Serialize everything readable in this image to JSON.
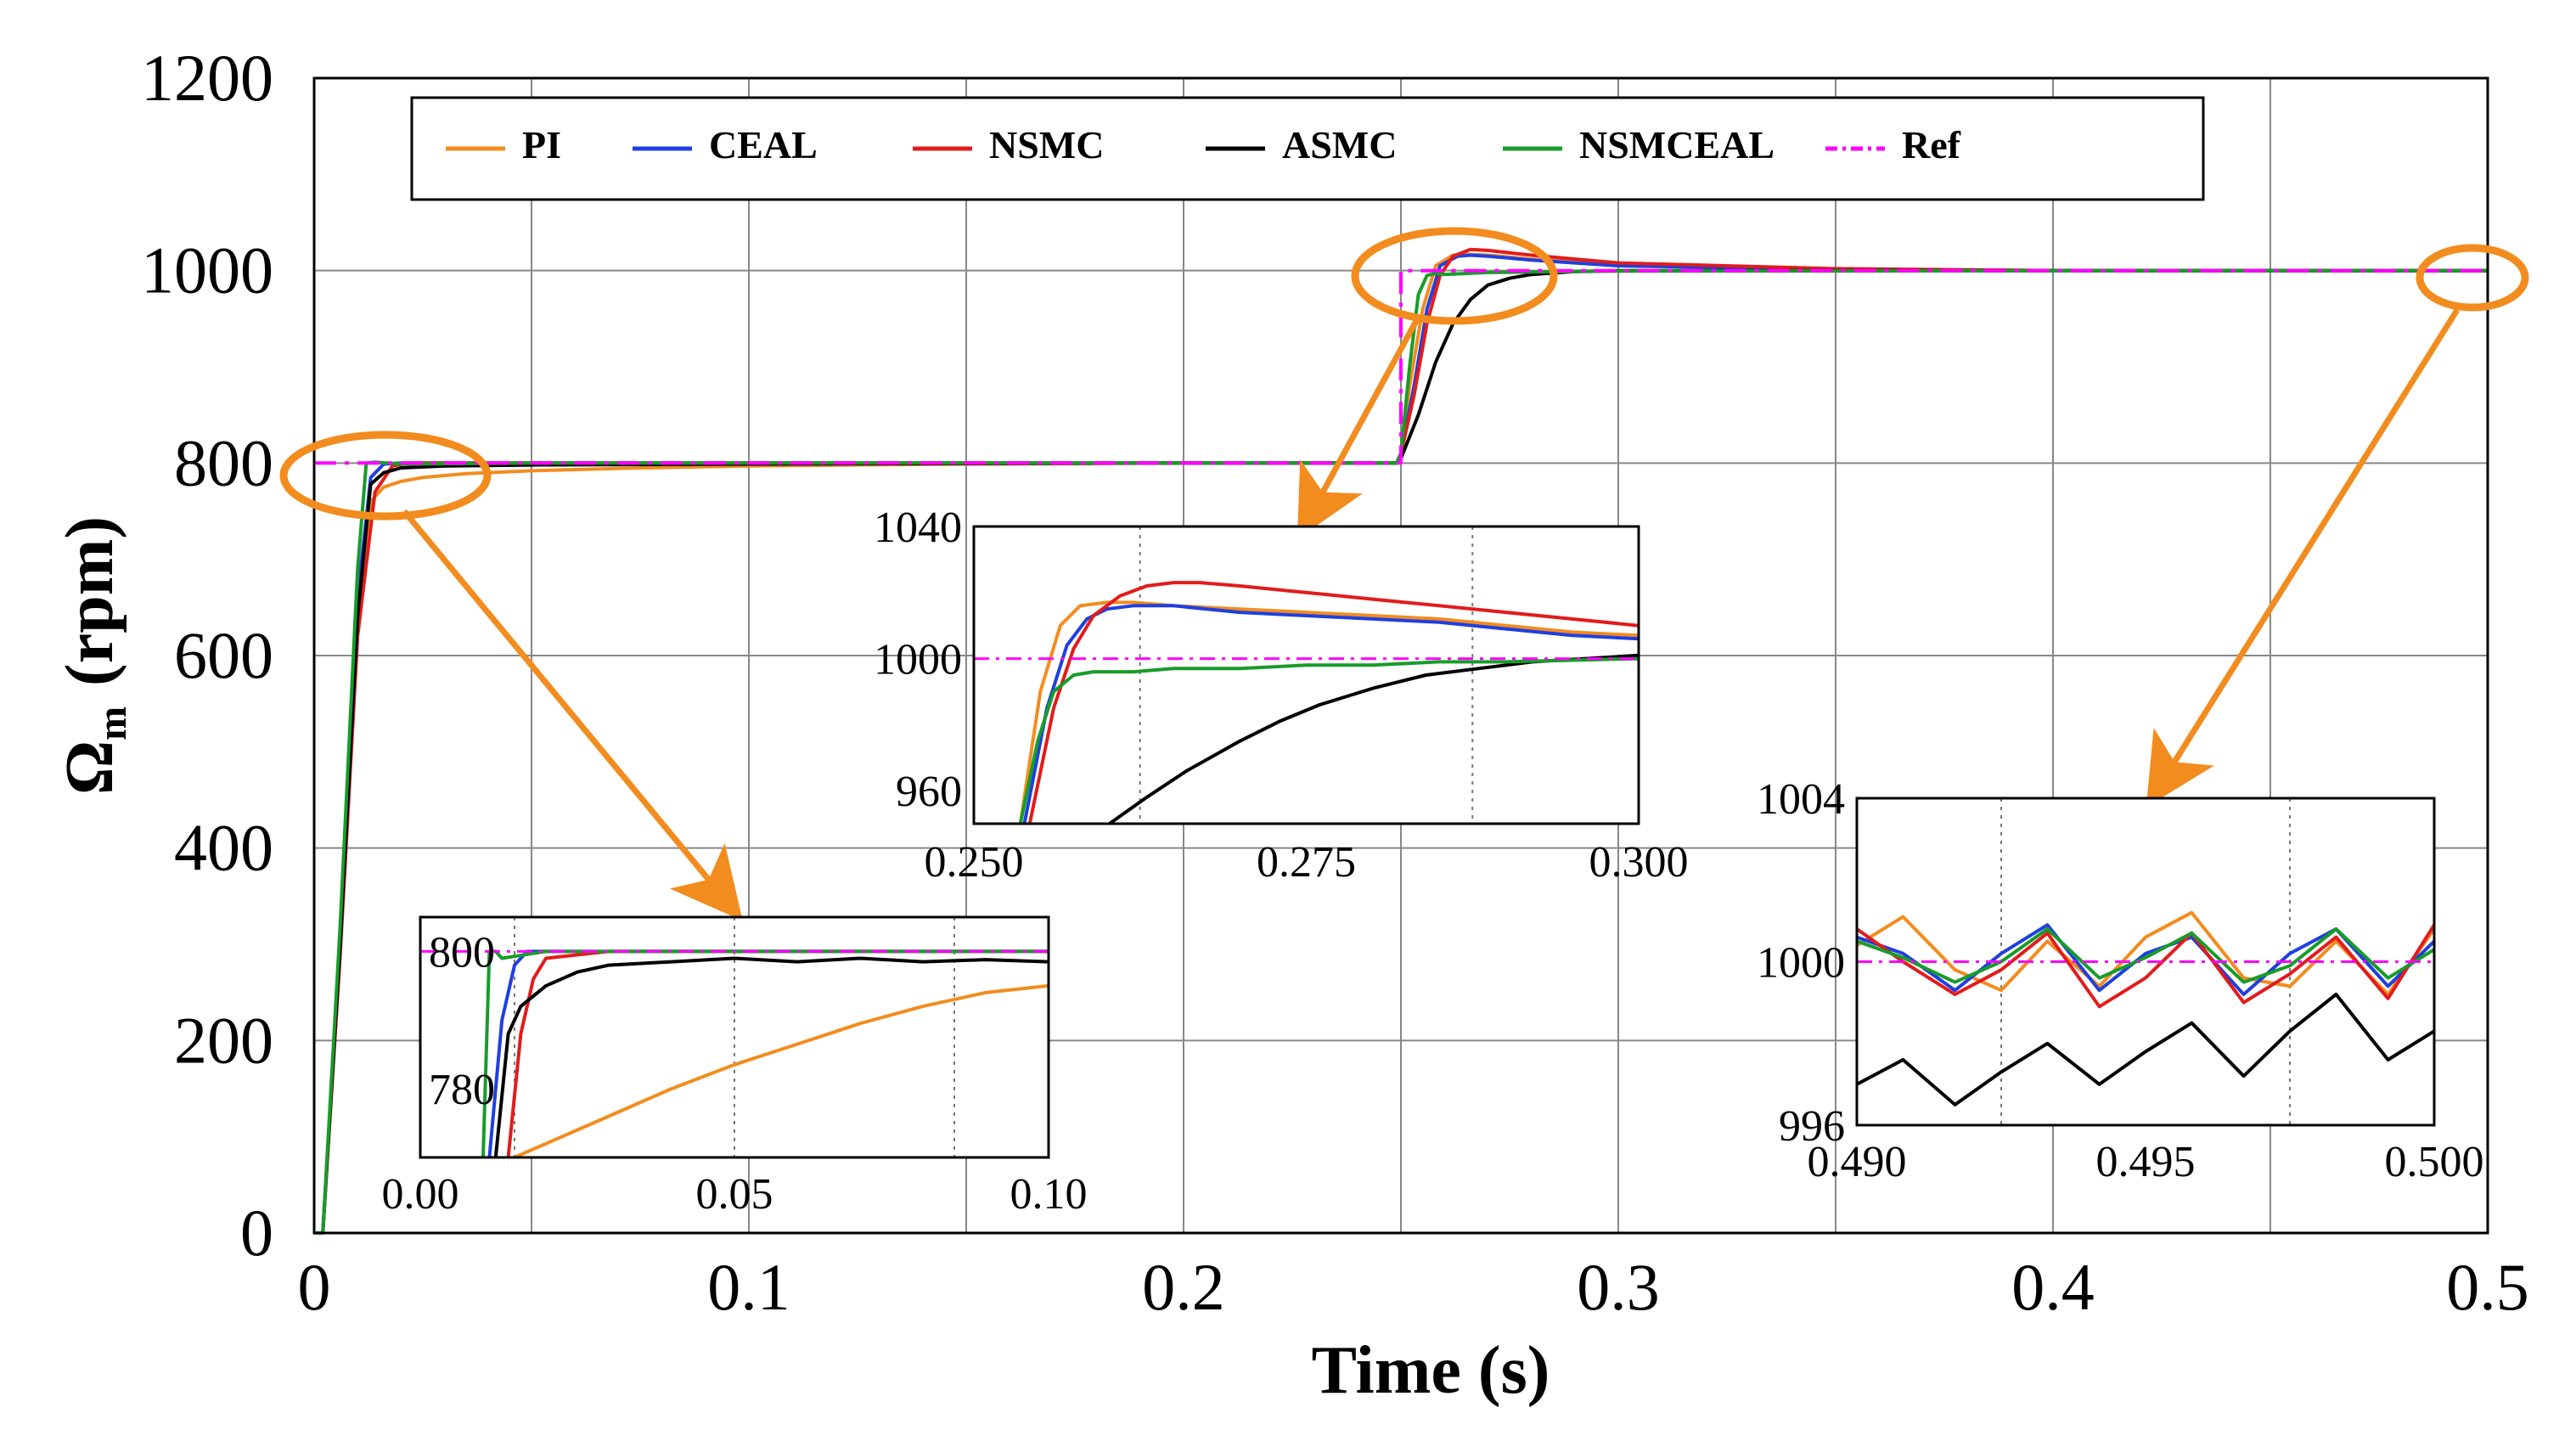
{
  "chart_data": [
    {
      "id": "main",
      "type": "line",
      "title": "",
      "xlabel": "Time (s)",
      "ylabel_main": "Ω",
      "ylabel_sub": "m",
      "ylabel_unit": "(rpm)",
      "xlim": [
        0,
        0.5
      ],
      "ylim": [
        0,
        1200
      ],
      "xticks": [
        0,
        0.1,
        0.2,
        0.3,
        0.4,
        0.5
      ],
      "xtick_labels": [
        "0",
        "0.1",
        "0.2",
        "0.3",
        "0.4",
        "0.5"
      ],
      "yticks": [
        0,
        200,
        400,
        600,
        800,
        1000,
        1200
      ],
      "ytick_labels": [
        "0",
        "200",
        "400",
        "600",
        "800",
        "1000",
        "1200"
      ],
      "xgrid": [
        0,
        0.05,
        0.1,
        0.15,
        0.2,
        0.25,
        0.3,
        0.35,
        0.4,
        0.45,
        0.5
      ],
      "ygrid": [
        0,
        200,
        400,
        600,
        800,
        1000,
        1200
      ],
      "grid": true,
      "legend_position": "top",
      "series": [
        {
          "name": "PI",
          "color": "#f28c1e",
          "dash": "solid",
          "x": [
            0,
            0.002,
            0.006,
            0.01,
            0.013,
            0.016,
            0.02,
            0.025,
            0.035,
            0.05,
            0.075,
            0.1,
            0.15,
            0.2,
            0.249,
            0.25,
            0.252,
            0.255,
            0.258,
            0.262,
            0.265,
            0.27,
            0.28,
            0.3,
            0.35,
            0.4,
            0.5
          ],
          "y": [
            0,
            0,
            300,
            650,
            760,
            775,
            781,
            785,
            789,
            792,
            795,
            797,
            799,
            800,
            800,
            810,
            880,
            960,
            1005,
            1016,
            1017,
            1016,
            1012,
            1006,
            1001,
            1000,
            1000
          ]
        },
        {
          "name": "CEAL",
          "color": "#1f3fe0",
          "dash": "solid",
          "x": [
            0,
            0.002,
            0.006,
            0.01,
            0.013,
            0.016,
            0.02,
            0.05,
            0.1,
            0.2,
            0.249,
            0.25,
            0.253,
            0.256,
            0.259,
            0.263,
            0.266,
            0.27,
            0.28,
            0.3,
            0.35,
            0.4,
            0.5
          ],
          "y": [
            0,
            0,
            310,
            660,
            785,
            799,
            800,
            800,
            800,
            800,
            800,
            810,
            880,
            960,
            1005,
            1015,
            1016,
            1015,
            1011,
            1005,
            1001,
            1000,
            1000
          ]
        },
        {
          "name": "NSMC",
          "color": "#e31b1b",
          "dash": "solid",
          "x": [
            0,
            0.002,
            0.006,
            0.01,
            0.014,
            0.018,
            0.022,
            0.05,
            0.1,
            0.2,
            0.249,
            0.25,
            0.253,
            0.256,
            0.259,
            0.262,
            0.266,
            0.27,
            0.28,
            0.3,
            0.35,
            0.4,
            0.5
          ],
          "y": [
            0,
            0,
            290,
            620,
            770,
            797,
            800,
            800,
            800,
            800,
            800,
            810,
            870,
            945,
            995,
            1015,
            1022,
            1021,
            1016,
            1008,
            1002,
            1000,
            1000
          ]
        },
        {
          "name": "ASMC",
          "color": "#000000",
          "dash": "solid",
          "x": [
            0,
            0.002,
            0.006,
            0.01,
            0.013,
            0.016,
            0.02,
            0.03,
            0.05,
            0.1,
            0.2,
            0.249,
            0.25,
            0.254,
            0.258,
            0.262,
            0.266,
            0.27,
            0.275,
            0.28,
            0.29,
            0.3,
            0.35,
            0.4,
            0.5
          ],
          "y": [
            0,
            0,
            300,
            640,
            778,
            790,
            795,
            797,
            798,
            799,
            800,
            800,
            805,
            850,
            905,
            945,
            970,
            985,
            992,
            996,
            999,
            1000,
            1000,
            1000,
            1000
          ]
        },
        {
          "name": "NSMCEAL",
          "color": "#179c2a",
          "dash": "solid",
          "x": [
            0,
            0.002,
            0.006,
            0.01,
            0.012,
            0.014,
            0.02,
            0.05,
            0.1,
            0.2,
            0.249,
            0.25,
            0.252,
            0.254,
            0.256,
            0.258,
            0.26,
            0.27,
            0.3,
            0.5
          ],
          "y": [
            0,
            0,
            320,
            690,
            800,
            801,
            799,
            800,
            800,
            800,
            800,
            810,
            900,
            975,
            995,
            997,
            996,
            998,
            999.5,
            1000
          ]
        },
        {
          "name": "Ref",
          "color": "#ff00ff",
          "dash": "dashdot",
          "x": [
            0,
            0.25,
            0.25,
            0.5
          ],
          "y": [
            800,
            800,
            1000,
            1000
          ]
        }
      ]
    },
    {
      "id": "inset1",
      "type": "line",
      "xlim": [
        0,
        0.1
      ],
      "ylim": [
        770,
        805
      ],
      "xticks": [
        0,
        0.05,
        0.1
      ],
      "xtick_labels": [
        "0.00",
        "0.05",
        "0.10"
      ],
      "yticks": [
        780,
        800
      ],
      "ytick_labels": [
        "780",
        "800"
      ],
      "xgrid": [
        0.015,
        0.05,
        0.085
      ],
      "series": [
        {
          "name": "PI",
          "color": "#f28c1e",
          "x": [
            0.015,
            0.02,
            0.03,
            0.04,
            0.05,
            0.06,
            0.07,
            0.08,
            0.09,
            0.1
          ],
          "y": [
            770,
            772,
            776,
            780,
            783.5,
            786.5,
            789.5,
            792,
            794,
            795
          ]
        },
        {
          "name": "CEAL",
          "color": "#1f3fe0",
          "x": [
            0.011,
            0.013,
            0.015,
            0.017,
            0.03,
            0.05,
            0.07,
            0.1
          ],
          "y": [
            770,
            790,
            798,
            800,
            800,
            800,
            800,
            800
          ]
        },
        {
          "name": "NSMC",
          "color": "#e31b1b",
          "x": [
            0.014,
            0.016,
            0.018,
            0.02,
            0.03,
            0.05,
            0.07,
            0.1
          ],
          "y": [
            770,
            788,
            796,
            799,
            800,
            800,
            800,
            800
          ]
        },
        {
          "name": "ASMC",
          "color": "#000000",
          "x": [
            0.012,
            0.014,
            0.016,
            0.02,
            0.025,
            0.03,
            0.04,
            0.05,
            0.06,
            0.07,
            0.08,
            0.09,
            0.1
          ],
          "y": [
            770,
            788,
            792,
            795,
            797,
            798,
            798.5,
            799,
            798.5,
            799,
            798.5,
            798.8,
            798.5
          ]
        },
        {
          "name": "NSMCEAL",
          "color": "#179c2a",
          "x": [
            0.01,
            0.011,
            0.012,
            0.013,
            0.02,
            0.03,
            0.05,
            0.07,
            0.1
          ],
          "y": [
            770,
            800,
            800,
            799,
            800,
            800,
            800,
            800,
            800
          ]
        },
        {
          "name": "Ref",
          "color": "#ff00ff",
          "x": [
            0,
            0.1
          ],
          "y": [
            800,
            800
          ]
        }
      ]
    },
    {
      "id": "inset2",
      "type": "line",
      "xlim": [
        0.25,
        0.3
      ],
      "ylim": [
        950,
        1040
      ],
      "xticks": [
        0.25,
        0.275,
        0.3
      ],
      "xtick_labels": [
        "0.250",
        "0.275",
        "0.300"
      ],
      "yticks": [
        960,
        1000,
        1040
      ],
      "ytick_labels": [
        "960",
        "1000",
        "1040"
      ],
      "xgrid": [
        0.2625,
        0.2875
      ],
      "series": [
        {
          "name": "PI",
          "color": "#f28c1e",
          "x": [
            0.2535,
            0.255,
            0.2565,
            0.258,
            0.26,
            0.262,
            0.265,
            0.27,
            0.275,
            0.28,
            0.285,
            0.29,
            0.295,
            0.3
          ],
          "y": [
            950,
            990,
            1010,
            1016,
            1017,
            1017,
            1016,
            1015,
            1014,
            1013,
            1012,
            1010,
            1008,
            1007
          ]
        },
        {
          "name": "CEAL",
          "color": "#1f3fe0",
          "x": [
            0.2538,
            0.2555,
            0.257,
            0.2585,
            0.26,
            0.262,
            0.265,
            0.27,
            0.275,
            0.28,
            0.285,
            0.29,
            0.295,
            0.3
          ],
          "y": [
            950,
            985,
            1004,
            1012,
            1015,
            1016,
            1016,
            1014,
            1013,
            1012,
            1011,
            1009,
            1007,
            1006
          ]
        },
        {
          "name": "NSMC",
          "color": "#e31b1b",
          "x": [
            0.2542,
            0.256,
            0.2575,
            0.259,
            0.261,
            0.263,
            0.265,
            0.267,
            0.27,
            0.275,
            0.28,
            0.285,
            0.29,
            0.295,
            0.3
          ],
          "y": [
            950,
            985,
            1003,
            1013,
            1019,
            1022,
            1023,
            1023,
            1022,
            1020,
            1018,
            1016,
            1014,
            1012,
            1010
          ]
        },
        {
          "name": "ASMC",
          "color": "#000000",
          "x": [
            0.2602,
            0.263,
            0.266,
            0.27,
            0.273,
            0.276,
            0.28,
            0.284,
            0.288,
            0.292,
            0.296,
            0.3
          ],
          "y": [
            950,
            958,
            966,
            975,
            981,
            986,
            991,
            995,
            997,
            999,
            1000,
            1001
          ]
        },
        {
          "name": "NSMCEAL",
          "color": "#179c2a",
          "x": [
            0.2535,
            0.2548,
            0.256,
            0.2575,
            0.259,
            0.262,
            0.265,
            0.27,
            0.275,
            0.28,
            0.285,
            0.29,
            0.295,
            0.3
          ],
          "y": [
            950,
            975,
            990,
            995,
            996,
            996,
            997,
            997,
            998,
            998,
            999,
            999,
            999.5,
            1000
          ]
        },
        {
          "name": "Ref",
          "color": "#ff00ff",
          "x": [
            0.25,
            0.3
          ],
          "y": [
            1000,
            1000
          ]
        }
      ]
    },
    {
      "id": "inset3",
      "type": "line",
      "xlim": [
        0.49,
        0.5
      ],
      "ylim": [
        996,
        1004
      ],
      "xticks": [
        0.49,
        0.495,
        0.5
      ],
      "xtick_labels": [
        "0.490",
        "0.495",
        "0.500"
      ],
      "yticks": [
        996,
        1000,
        1004
      ],
      "ytick_labels": [
        "996",
        "1000",
        "1004"
      ],
      "xgrid": [
        0.4925,
        0.4975
      ],
      "series": [
        {
          "name": "PI",
          "color": "#f28c1e",
          "x": [
            0.49,
            0.4908,
            0.4917,
            0.4925,
            0.4933,
            0.4942,
            0.495,
            0.4958,
            0.4967,
            0.4975,
            0.4983,
            0.4992,
            0.5
          ],
          "y": [
            1000.4,
            1001.1,
            999.8,
            999.3,
            1000.5,
            999.4,
            1000.6,
            1001.2,
            999.6,
            999.4,
            1000.5,
            999.2,
            1000.8
          ]
        },
        {
          "name": "CEAL",
          "color": "#1f3fe0",
          "x": [
            0.49,
            0.4908,
            0.4917,
            0.4925,
            0.4933,
            0.4942,
            0.495,
            0.4958,
            0.4967,
            0.4975,
            0.4983,
            0.4992,
            0.5
          ],
          "y": [
            1000.6,
            1000.2,
            999.3,
            1000.2,
            1000.9,
            999.3,
            1000.2,
            1000.6,
            999.2,
            1000.2,
            1000.8,
            999.4,
            1000.5
          ]
        },
        {
          "name": "NSMC",
          "color": "#e31b1b",
          "x": [
            0.49,
            0.4908,
            0.4917,
            0.4925,
            0.4933,
            0.4942,
            0.495,
            0.4958,
            0.4967,
            0.4975,
            0.4983,
            0.4992,
            0.5
          ],
          "y": [
            1000.8,
            1000.0,
            999.2,
            999.8,
            1000.7,
            998.9,
            999.6,
            1000.7,
            999.0,
            999.7,
            1000.6,
            999.1,
            1000.9
          ]
        },
        {
          "name": "ASMC",
          "color": "#000000",
          "x": [
            0.49,
            0.4908,
            0.4917,
            0.4925,
            0.4933,
            0.4942,
            0.495,
            0.4958,
            0.4967,
            0.4975,
            0.4983,
            0.4992,
            0.5
          ],
          "y": [
            997.0,
            997.6,
            996.5,
            997.3,
            998.0,
            997.0,
            997.8,
            998.5,
            997.2,
            998.3,
            999.2,
            997.6,
            998.3
          ]
        },
        {
          "name": "NSMCEAL",
          "color": "#179c2a",
          "x": [
            0.49,
            0.4908,
            0.4917,
            0.4925,
            0.4933,
            0.4942,
            0.495,
            0.4958,
            0.4967,
            0.4975,
            0.4983,
            0.4992,
            0.5
          ],
          "y": [
            1000.5,
            1000.1,
            999.5,
            1000.0,
            1000.8,
            999.6,
            1000.1,
            1000.7,
            999.5,
            999.9,
            1000.8,
            999.6,
            1000.3
          ]
        },
        {
          "name": "Ref",
          "color": "#ff00ff",
          "x": [
            0.49,
            0.5
          ],
          "y": [
            1000,
            1000
          ]
        }
      ]
    }
  ],
  "annotation_color": "#f28c1e"
}
